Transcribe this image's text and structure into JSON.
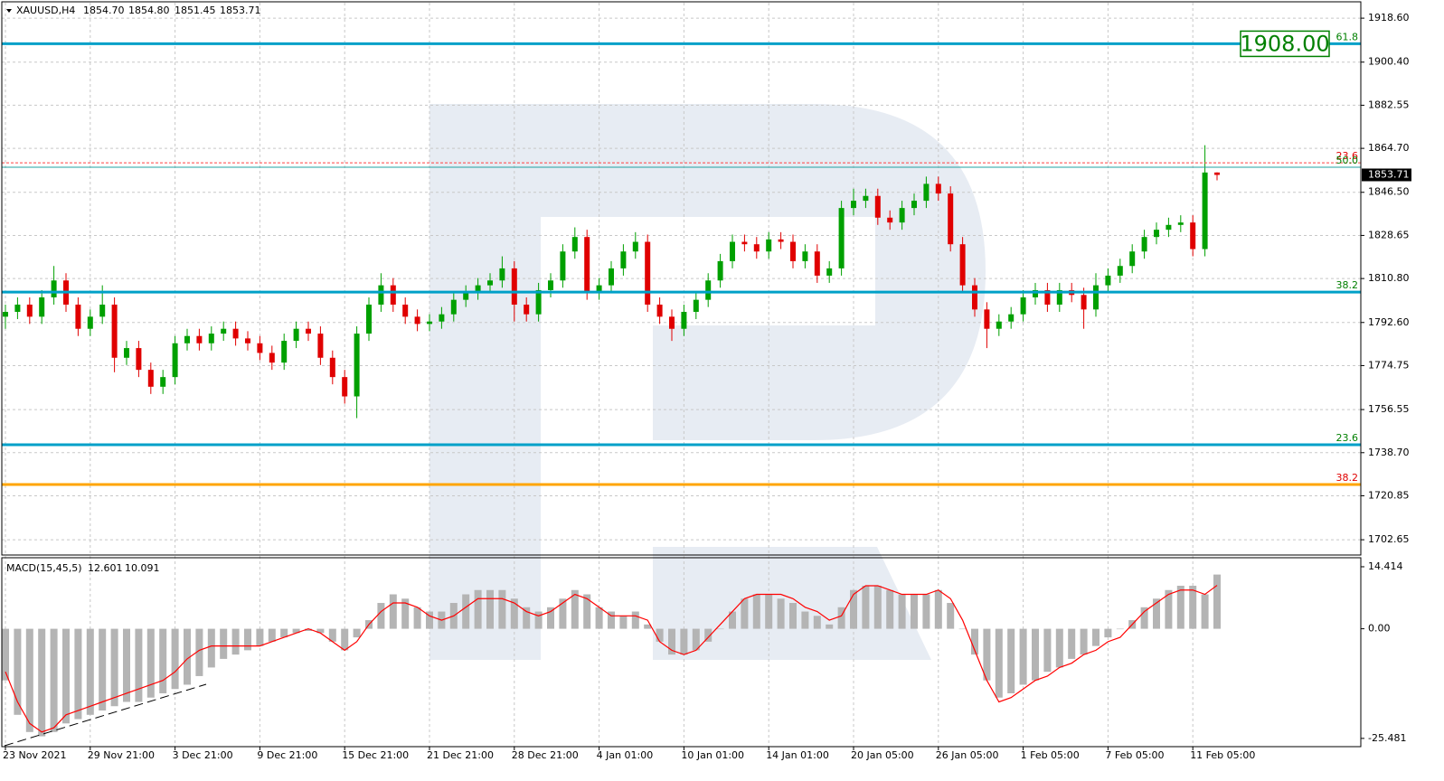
{
  "chart_data": [
    {
      "type": "candlestick",
      "symbol": "XAUUSD,H4",
      "quote": [
        "1854.70",
        "1854.80",
        "1851.45",
        "1853.71"
      ],
      "price_label": "1853.71",
      "target_label": "1908.00",
      "categories": [
        "23 Nov 2021",
        null,
        null,
        null,
        null,
        null,
        null,
        "29 Nov 21:00",
        null,
        null,
        null,
        null,
        null,
        null,
        "3 Dec 21:00",
        null,
        null,
        null,
        null,
        null,
        null,
        "9 Dec 21:00",
        null,
        null,
        null,
        null,
        null,
        null,
        "15 Dec 21:00",
        null,
        null,
        null,
        null,
        null,
        null,
        "21 Dec 21:00",
        null,
        null,
        null,
        null,
        null,
        null,
        "28 Dec 21:00",
        null,
        null,
        null,
        null,
        null,
        null,
        "4 Jan 01:00",
        null,
        null,
        null,
        null,
        null,
        null,
        "10 Jan 01:00",
        null,
        null,
        null,
        null,
        null,
        null,
        "14 Jan 01:00",
        null,
        null,
        null,
        null,
        null,
        null,
        "20 Jan 05:00",
        null,
        null,
        null,
        null,
        null,
        null,
        "26 Jan 05:00",
        null,
        null,
        null,
        null,
        null,
        null,
        "1 Feb 05:00",
        null,
        null,
        null,
        null,
        null,
        null,
        "7 Feb 05:00",
        null,
        null,
        null,
        null,
        null,
        null,
        "11 Feb 05:00",
        null,
        null
      ],
      "open": [
        1795,
        1797,
        1800,
        1795,
        1803,
        1810,
        1800,
        1790,
        1795,
        1800,
        1778,
        1782,
        1773,
        1766,
        1770,
        1784,
        1787,
        1784,
        1788,
        1790,
        1786,
        1784,
        1780,
        1776,
        1785,
        1790,
        1788,
        1778,
        1770,
        1762,
        1788,
        1800,
        1808,
        1800,
        1795,
        1792,
        1793,
        1796,
        1802,
        1805,
        1808,
        1810,
        1815,
        1800,
        1796,
        1806,
        1810,
        1822,
        1828,
        1805,
        1808,
        1815,
        1822,
        1826,
        1800,
        1795,
        1790,
        1797,
        1802,
        1810,
        1818,
        1826,
        1825,
        1822,
        1827,
        1826,
        1818,
        1822,
        1812,
        1815,
        1840,
        1843,
        1845,
        1836,
        1834,
        1840,
        1843,
        1850,
        1846,
        1825,
        1808,
        1798,
        1790,
        1793,
        1796,
        1803,
        1806,
        1800,
        1806,
        1804,
        1798,
        1808,
        1812,
        1816,
        1822,
        1828,
        1831,
        1833,
        1834,
        1823,
        1854.7
      ],
      "high": [
        1800,
        1803,
        1803,
        1806,
        1816,
        1813,
        1803,
        1798,
        1808,
        1803,
        1785,
        1785,
        1776,
        1773,
        1787,
        1790,
        1790,
        1791,
        1793,
        1793,
        1789,
        1787,
        1783,
        1788,
        1793,
        1793,
        1791,
        1781,
        1773,
        1791,
        1803,
        1813,
        1811,
        1803,
        1798,
        1796,
        1799,
        1805,
        1808,
        1811,
        1813,
        1820,
        1818,
        1803,
        1809,
        1813,
        1825,
        1832,
        1831,
        1811,
        1818,
        1825,
        1830,
        1829,
        1803,
        1798,
        1800,
        1805,
        1813,
        1821,
        1829,
        1829,
        1828,
        1830,
        1830,
        1829,
        1825,
        1825,
        1818,
        1843,
        1848,
        1848,
        1848,
        1839,
        1843,
        1846,
        1853,
        1853,
        1849,
        1828,
        1811,
        1801,
        1796,
        1799,
        1806,
        1809,
        1809,
        1809,
        1809,
        1807,
        1813,
        1815,
        1819,
        1825,
        1831,
        1834,
        1836,
        1837,
        1837,
        1866,
        1854.8
      ],
      "low": [
        1790,
        1794,
        1792,
        1792,
        1800,
        1797,
        1787,
        1787,
        1792,
        1772,
        1775,
        1770,
        1763,
        1763,
        1767,
        1781,
        1781,
        1781,
        1785,
        1783,
        1781,
        1777,
        1773,
        1773,
        1782,
        1785,
        1775,
        1767,
        1759,
        1753,
        1785,
        1797,
        1797,
        1792,
        1789,
        1789,
        1790,
        1793,
        1799,
        1802,
        1805,
        1807,
        1793,
        1793,
        1793,
        1803,
        1807,
        1819,
        1802,
        1802,
        1805,
        1812,
        1819,
        1797,
        1792,
        1785,
        1787,
        1794,
        1799,
        1807,
        1815,
        1822,
        1819,
        1819,
        1823,
        1815,
        1815,
        1809,
        1809,
        1812,
        1837,
        1840,
        1833,
        1831,
        1831,
        1837,
        1840,
        1843,
        1822,
        1805,
        1795,
        1782,
        1787,
        1790,
        1793,
        1800,
        1797,
        1797,
        1801,
        1790,
        1795,
        1805,
        1809,
        1813,
        1819,
        1825,
        1828,
        1830,
        1820,
        1820,
        1851.45
      ],
      "close": [
        1797,
        1800,
        1795,
        1803,
        1810,
        1800,
        1790,
        1795,
        1800,
        1778,
        1782,
        1773,
        1766,
        1770,
        1784,
        1787,
        1784,
        1788,
        1790,
        1786,
        1784,
        1780,
        1776,
        1785,
        1790,
        1788,
        1778,
        1770,
        1762,
        1788,
        1800,
        1808,
        1800,
        1795,
        1792,
        1793,
        1796,
        1802,
        1805,
        1808,
        1810,
        1815,
        1800,
        1796,
        1806,
        1810,
        1822,
        1828,
        1805,
        1808,
        1815,
        1822,
        1826,
        1800,
        1795,
        1790,
        1797,
        1802,
        1810,
        1818,
        1826,
        1825,
        1822,
        1827,
        1826,
        1818,
        1822,
        1812,
        1815,
        1840,
        1843,
        1845,
        1836,
        1834,
        1840,
        1843,
        1850,
        1846,
        1825,
        1808,
        1798,
        1790,
        1793,
        1796,
        1803,
        1806,
        1800,
        1806,
        1804,
        1798,
        1808,
        1812,
        1816,
        1822,
        1828,
        1831,
        1833,
        1834,
        1823,
        1854.7,
        1853.71
      ],
      "up_color": "#00a000",
      "down_color": "#e00000",
      "ylim": [
        1696.7,
        1925.0
      ],
      "yticks": [
        {
          "value": 1918.6,
          "label": "1918.60"
        },
        {
          "value": 1900.4,
          "label": "1900.40"
        },
        {
          "value": 1882.55,
          "label": "1882.55"
        },
        {
          "value": 1864.7,
          "label": "1864.70"
        },
        {
          "value": 1846.5,
          "label": "1846.50"
        },
        {
          "value": 1828.65,
          "label": "1828.65"
        },
        {
          "value": 1810.8,
          "label": "1810.80"
        },
        {
          "value": 1792.6,
          "label": "1792.60"
        },
        {
          "value": 1774.75,
          "label": "1774.75"
        },
        {
          "value": 1756.55,
          "label": "1756.55"
        },
        {
          "value": 1738.7,
          "label": "1738.70"
        },
        {
          "value": 1720.85,
          "label": "1720.85"
        },
        {
          "value": 1702.65,
          "label": "1702.65"
        }
      ],
      "grid": true,
      "levels": [
        {
          "value": 1908,
          "label": "61.8",
          "color": "#00a0c8",
          "label_color": "#008000",
          "dashed": false
        },
        {
          "value": 1858.7,
          "label": "23.6",
          "color": "#ff4040",
          "label_color": "#e00000",
          "dashed": true
        },
        {
          "value": 1856.9,
          "label": "50.0",
          "color": "#20a0a0",
          "label_color": "#008000",
          "dashed": false
        },
        {
          "value": 1805.2,
          "label": "38.2",
          "color": "#00a0c8",
          "label_color": "#008000",
          "dashed": false
        },
        {
          "value": 1742.0,
          "label": "23.6",
          "color": "#00a0c8",
          "label_color": "#008000",
          "dashed": false
        },
        {
          "value": 1725.5,
          "label": "38.2",
          "color": "#ffa500",
          "label_color": "#e00000",
          "dashed": false
        }
      ]
    },
    {
      "type": "macd",
      "title": "MACD(15,45,5)",
      "readout": [
        "12.601",
        "10.091"
      ],
      "histogram": [
        -12,
        -20,
        -24,
        -25,
        -24,
        -22,
        -21,
        -20,
        -19,
        -18,
        -17,
        -17,
        -16,
        -15,
        -14,
        -13,
        -11,
        -9,
        -7,
        -6,
        -5,
        -4,
        -3,
        -2,
        -1,
        -0.5,
        -1,
        -3,
        -5,
        -2,
        2,
        6,
        8,
        7,
        5,
        4,
        4,
        6,
        8,
        9,
        9,
        9,
        7,
        5,
        4,
        5,
        7,
        9,
        8,
        5,
        4,
        3,
        4,
        1,
        -3,
        -6,
        -6,
        -5,
        -3,
        0,
        4,
        7,
        8,
        8,
        7,
        6,
        4,
        3,
        1,
        5,
        9,
        10,
        10,
        9,
        8,
        8,
        8,
        9,
        6,
        0,
        -6,
        -12,
        -16,
        -15,
        -13,
        -12,
        -10,
        -9,
        -7,
        -6,
        -4,
        -2,
        0,
        2,
        5,
        7,
        9,
        10,
        10,
        8,
        12.601
      ],
      "signal": [
        -10,
        -17,
        -22,
        -24,
        -23,
        -20,
        -19,
        -18,
        -17,
        -16,
        -15,
        -14,
        -13,
        -12,
        -10,
        -7,
        -5,
        -4,
        -4,
        -4,
        -4,
        -4,
        -3,
        -2,
        -1,
        0,
        -1,
        -3,
        -5,
        -3,
        1,
        4,
        6,
        6,
        5,
        3,
        2,
        3,
        5,
        7,
        7,
        7,
        6,
        4,
        3,
        4,
        6,
        8,
        7,
        5,
        3,
        3,
        3,
        2,
        -3,
        -5,
        -6,
        -5,
        -2,
        1,
        4,
        7,
        8,
        8,
        8,
        7,
        5,
        4,
        2,
        3,
        8,
        10,
        10,
        9,
        8,
        8,
        8,
        9,
        7,
        2,
        -5,
        -12,
        -17,
        -16,
        -14,
        -12,
        -11,
        -9,
        -8,
        -6,
        -5,
        -3,
        -2,
        1,
        4,
        6,
        8,
        9,
        9,
        8,
        10.091
      ],
      "histogram_color": "#b4b4b4",
      "signal_color": "#ff0000",
      "ylim": [
        -27.4,
        16.3
      ],
      "yticks": [
        14.414,
        {
          "value": 0,
          "label": "0.00"
        },
        -25.481
      ]
    }
  ]
}
